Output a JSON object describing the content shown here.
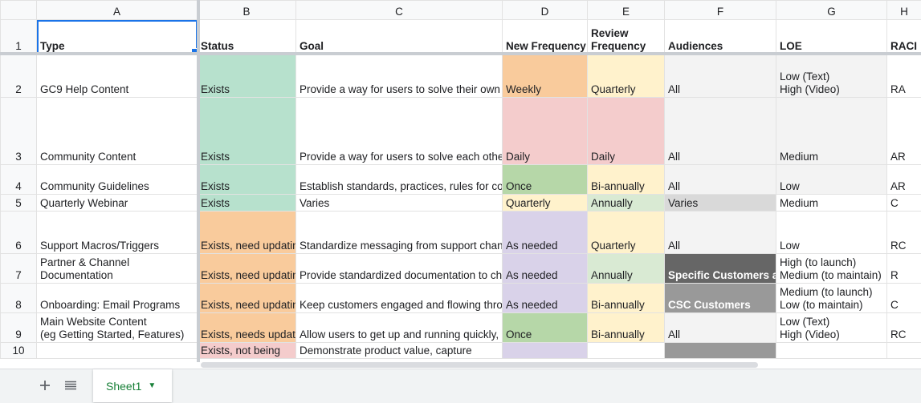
{
  "spreadsheet": {
    "column_headers": [
      "A",
      "B",
      "C",
      "D",
      "E",
      "F",
      "G",
      "H"
    ],
    "header_row": {
      "row_number": "1",
      "cells": [
        "Type",
        "Status",
        "Goal",
        "New Frequency",
        "Review\nFrequency",
        "Audiences",
        "LOE",
        "RACI"
      ]
    },
    "rows": [
      {
        "num": "2",
        "type": "GC9 Help Content",
        "status": "Exists",
        "goal": "Provide a way for users to solve their own problems, learn about features and how they work, train their own users.",
        "new_freq": "Weekly",
        "review_freq": "Quarterly",
        "audiences": "All",
        "loe": "Low (Text)\nHigh (Video)",
        "raci": "RA"
      },
      {
        "num": "3",
        "type": "Community Content",
        "status": "Exists",
        "goal": "Provide a way for users to solve each others' problems, provide solutions, learn about tips and tricks, add feature requests, engage with us and each other, cultivate engagement/ownership/inclusion.",
        "new_freq": "Daily",
        "review_freq": "Daily",
        "audiences": "All",
        "loe": "Medium",
        "raci": "AR"
      },
      {
        "num": "4",
        "type": "Community Guidelines",
        "status": "Exists",
        "goal": "Establish standards, practices, rules for community participation.",
        "new_freq": "Once",
        "review_freq": "Bi-annually",
        "audiences": "All",
        "loe": "Low",
        "raci": "AR"
      },
      {
        "num": "5",
        "type": "Quarterly Webinar",
        "status": "Exists",
        "goal": "Varies",
        "new_freq": "Quarterly",
        "review_freq": "Annually",
        "audiences": "Varies",
        "loe": "Medium",
        "raci": "C"
      },
      {
        "num": "6",
        "type": "Support Macros/Triggers",
        "status": "Exists, need updating/review",
        "goal": "Standardize messaging from support channels and make it easy for Support staff to serve customers.",
        "new_freq": "As needed",
        "review_freq": "Quarterly",
        "audiences": "All",
        "loe": "Low",
        "raci": "RC"
      },
      {
        "num": "7",
        "type": "Partner & Channel Documentation",
        "status": "Exists, need updating/review",
        "goal": "Provide standardized documentation to channel customers.",
        "new_freq": "As needed",
        "review_freq": "Annually",
        "audiences": "Specific Customers and Partners",
        "loe": "High (to launch)\nMedium (to maintain)",
        "raci": "R"
      },
      {
        "num": "8",
        "type": "Onboarding: Email Programs",
        "status": "Exists, need updating/review",
        "goal": "Keep customers engaged and flowing through the CSC process.",
        "new_freq": "As needed",
        "review_freq": "Bi-annually",
        "audiences": "CSC Customers",
        "loe": "Medium (to launch)\nLow (to maintain)",
        "raci": "C"
      },
      {
        "num": "9",
        "type": "Main Website Content\n(eg Getting Started, Features)",
        "status": "Exists, needs updating/review",
        "goal": "Allow users to get up and running quickly, and do demonstrate ease of use.",
        "new_freq": "Once",
        "review_freq": "Bi-annually",
        "audiences": "All",
        "loe": "Low (Text)\nHigh (Video)",
        "raci": "RC"
      },
      {
        "num": "10",
        "type": "",
        "status": "Exists, not being",
        "goal": "Demonstrate product value, capture",
        "new_freq": "",
        "review_freq": "",
        "audiences": "",
        "loe": "",
        "raci": ""
      }
    ]
  },
  "tab_bar": {
    "add_sheet_icon": "plus-icon",
    "all_sheets_icon": "list-icon",
    "active_tab": "Sheet1",
    "tab_menu_icon": "caret-down-icon"
  },
  "colors": {
    "green": "#b7e1cd",
    "orange": "#f9cb9c",
    "pink": "#f4cccc",
    "yellow": "#fff2cc",
    "lavender": "#d9d2e9",
    "light_green": "#d9ead3",
    "mid_green": "#b6d7a8",
    "light_gray": "#f3f3f3",
    "gray": "#d9d9d9",
    "dark_gray": "#666666",
    "mid_gray": "#999999",
    "sheet_tab_green": "#188038",
    "selection_blue": "#1a73e8"
  }
}
